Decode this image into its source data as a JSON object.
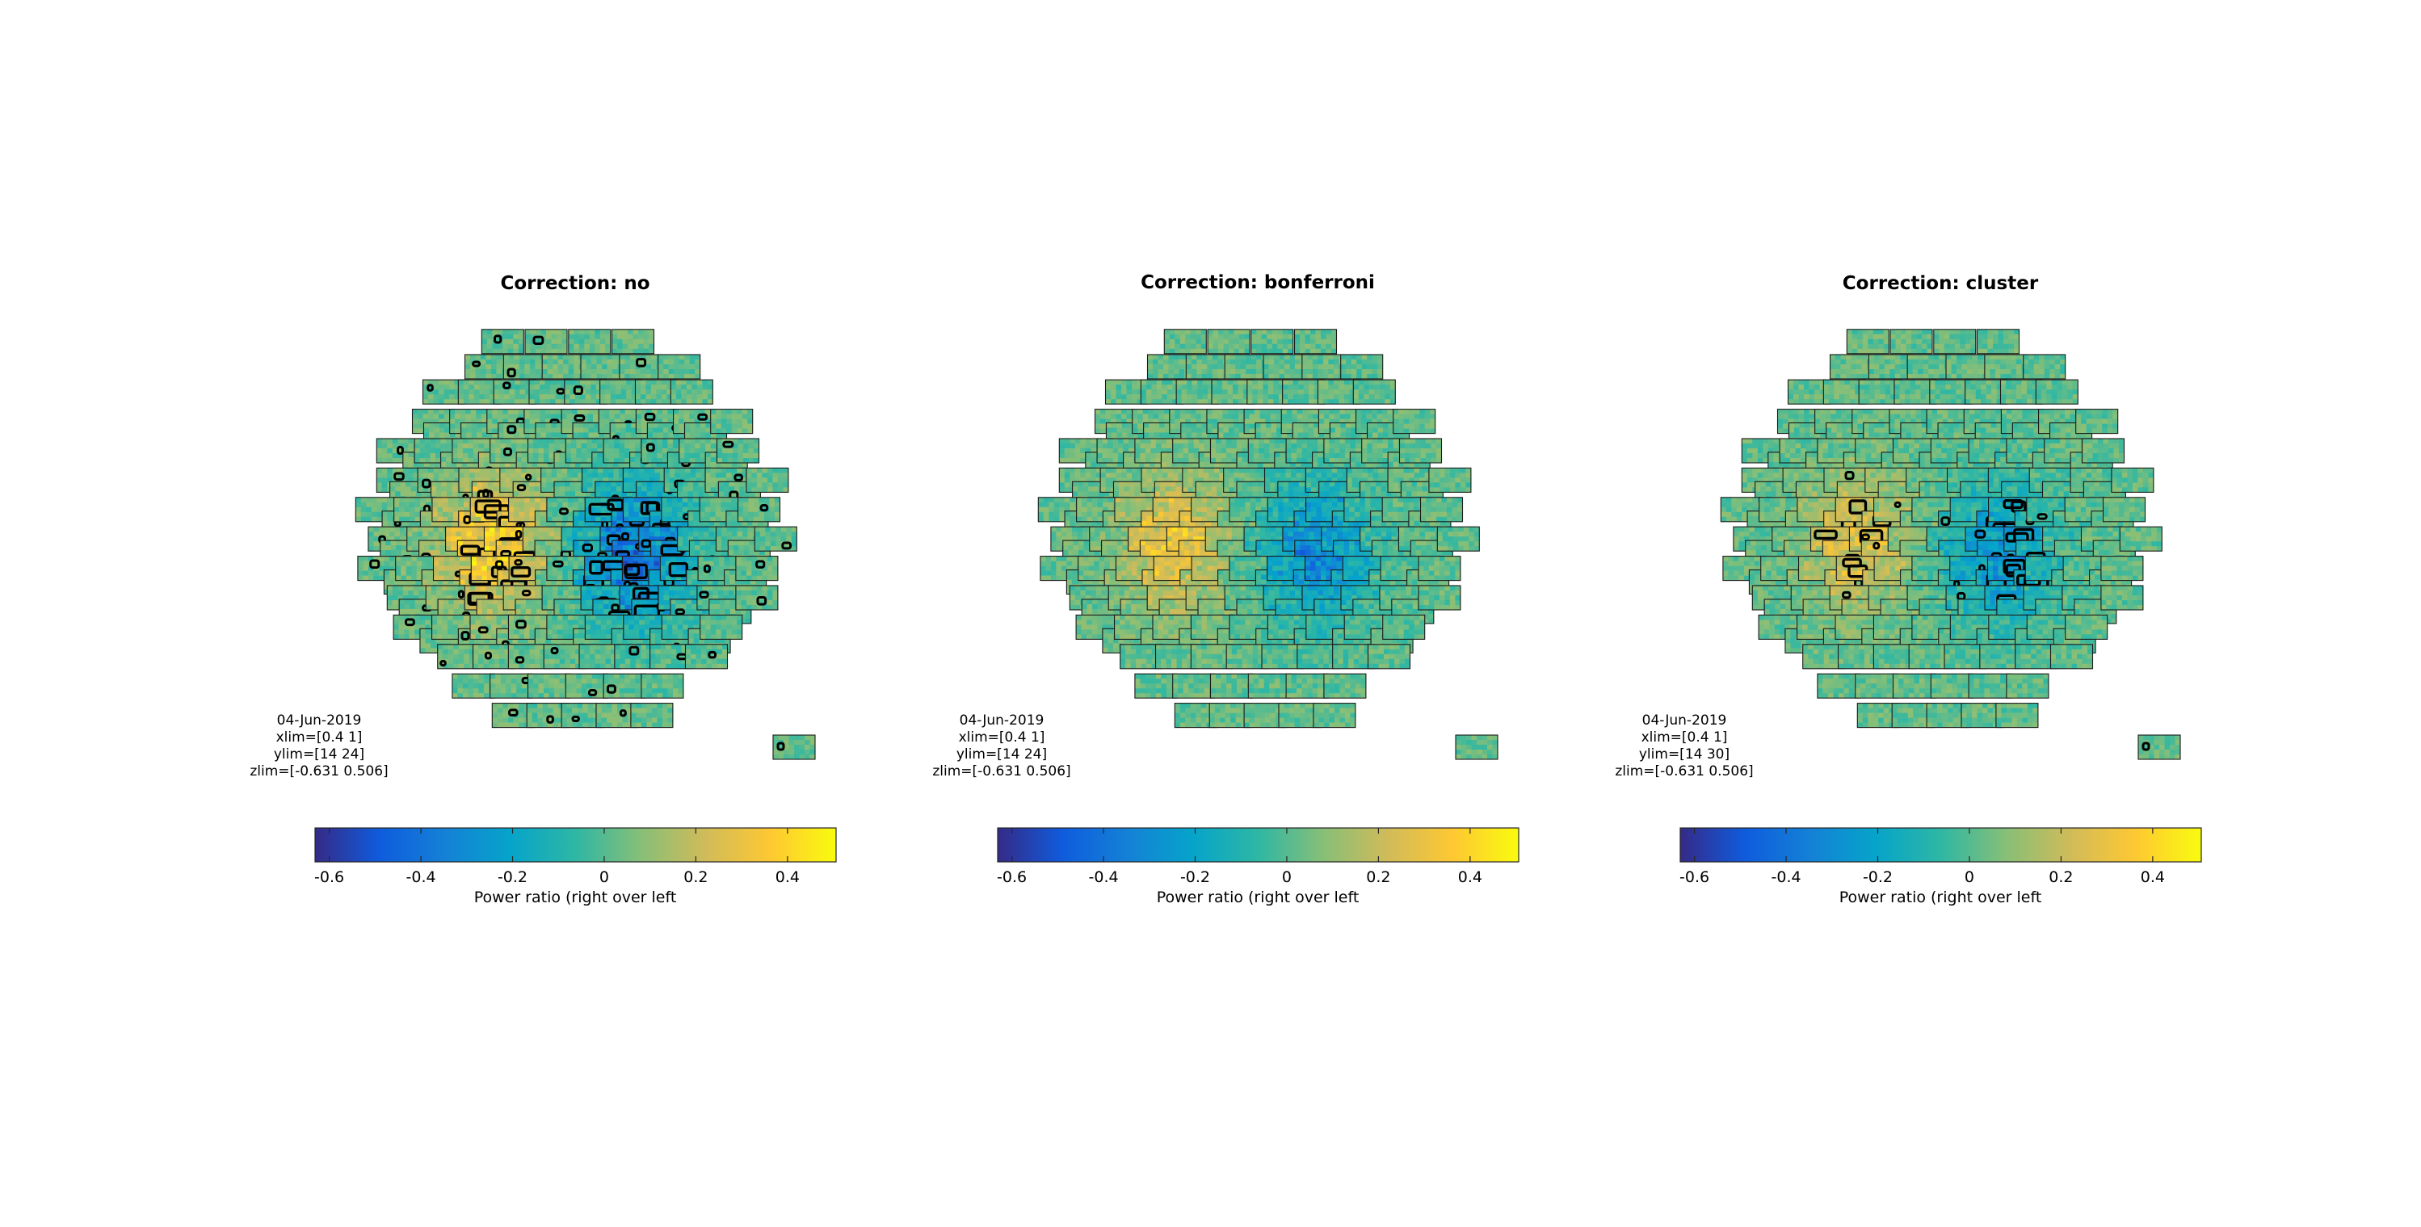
{
  "colormap": [
    "#352a87",
    "#0f5cdd",
    "#1481d6",
    "#06a4ca",
    "#2eb7a4",
    "#87bf77",
    "#d1bb59",
    "#fec832",
    "#f9fb0e"
  ],
  "contour_color": "#000000",
  "chart_data": [
    {
      "type": "heatmap",
      "layout": "multiplot topographic sensor layout",
      "title": "Correction: no",
      "info": [
        "04-Jun-2019",
        "xlim=[0.4 1]",
        "ylim=[14 24]",
        "zlim=[-0.631 0.506]"
      ],
      "xlim": [
        0.4,
        1
      ],
      "ylim": [
        14,
        24
      ],
      "zlim": [
        -0.631,
        0.506
      ],
      "colorbar": {
        "label": "Power ratio (right over left",
        "ticks": [
          -0.6,
          -0.4,
          -0.2,
          0,
          0.2,
          0.4
        ],
        "tick_labels": [
          "-0.6",
          "-0.4",
          "-0.2",
          "0",
          "0.2",
          "0.4"
        ],
        "range": [
          -0.631,
          0.506
        ]
      },
      "effect_amplitude": 1.0,
      "mask": "many",
      "seed": 11
    },
    {
      "type": "heatmap",
      "layout": "multiplot topographic sensor layout",
      "title": "Correction: bonferroni",
      "info": [
        "04-Jun-2019",
        "xlim=[0.4 1]",
        "ylim=[14 24]",
        "zlim=[-0.631 0.506]"
      ],
      "xlim": [
        0.4,
        1
      ],
      "ylim": [
        14,
        24
      ],
      "zlim": [
        -0.631,
        0.506
      ],
      "colorbar": {
        "label": "Power ratio (right over left",
        "ticks": [
          -0.6,
          -0.4,
          -0.2,
          0,
          0.2,
          0.4
        ],
        "tick_labels": [
          "-0.6",
          "-0.4",
          "-0.2",
          "0",
          "0.2",
          "0.4"
        ],
        "range": [
          -0.631,
          0.506
        ]
      },
      "effect_amplitude": 0.8,
      "mask": "none",
      "seed": 23
    },
    {
      "type": "heatmap",
      "layout": "multiplot topographic sensor layout",
      "title": "Correction: cluster",
      "info": [
        "04-Jun-2019",
        "xlim=[0.4 1]",
        "ylim=[14 30]",
        "zlim=[-0.631 0.506]"
      ],
      "xlim": [
        0.4,
        1
      ],
      "ylim": [
        14,
        30
      ],
      "zlim": [
        -0.631,
        0.506
      ],
      "colorbar": {
        "label": "Power ratio (right over left",
        "ticks": [
          -0.6,
          -0.4,
          -0.2,
          0,
          0.2,
          0.4
        ],
        "tick_labels": [
          "-0.6",
          "-0.4",
          "-0.2",
          "0",
          "0.2",
          "0.4"
        ],
        "range": [
          -0.631,
          0.506
        ]
      },
      "effect_amplitude": 0.7,
      "mask": "cluster",
      "seed": 37
    }
  ]
}
